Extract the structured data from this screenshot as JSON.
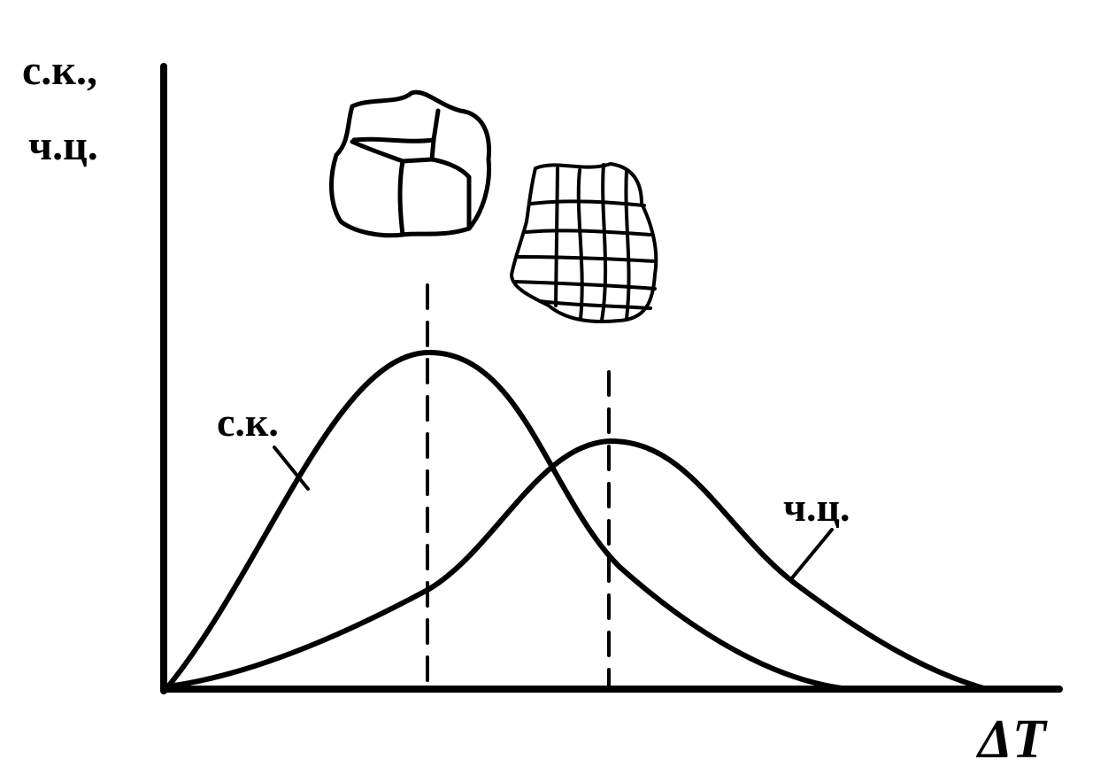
{
  "y_axis_label": {
    "line1": "с.к.,",
    "line2": "ч.ц."
  },
  "curves": [
    {
      "label": "с.к."
    },
    {
      "label": "ч.ц."
    }
  ],
  "x_axis_label": "ΔT"
}
